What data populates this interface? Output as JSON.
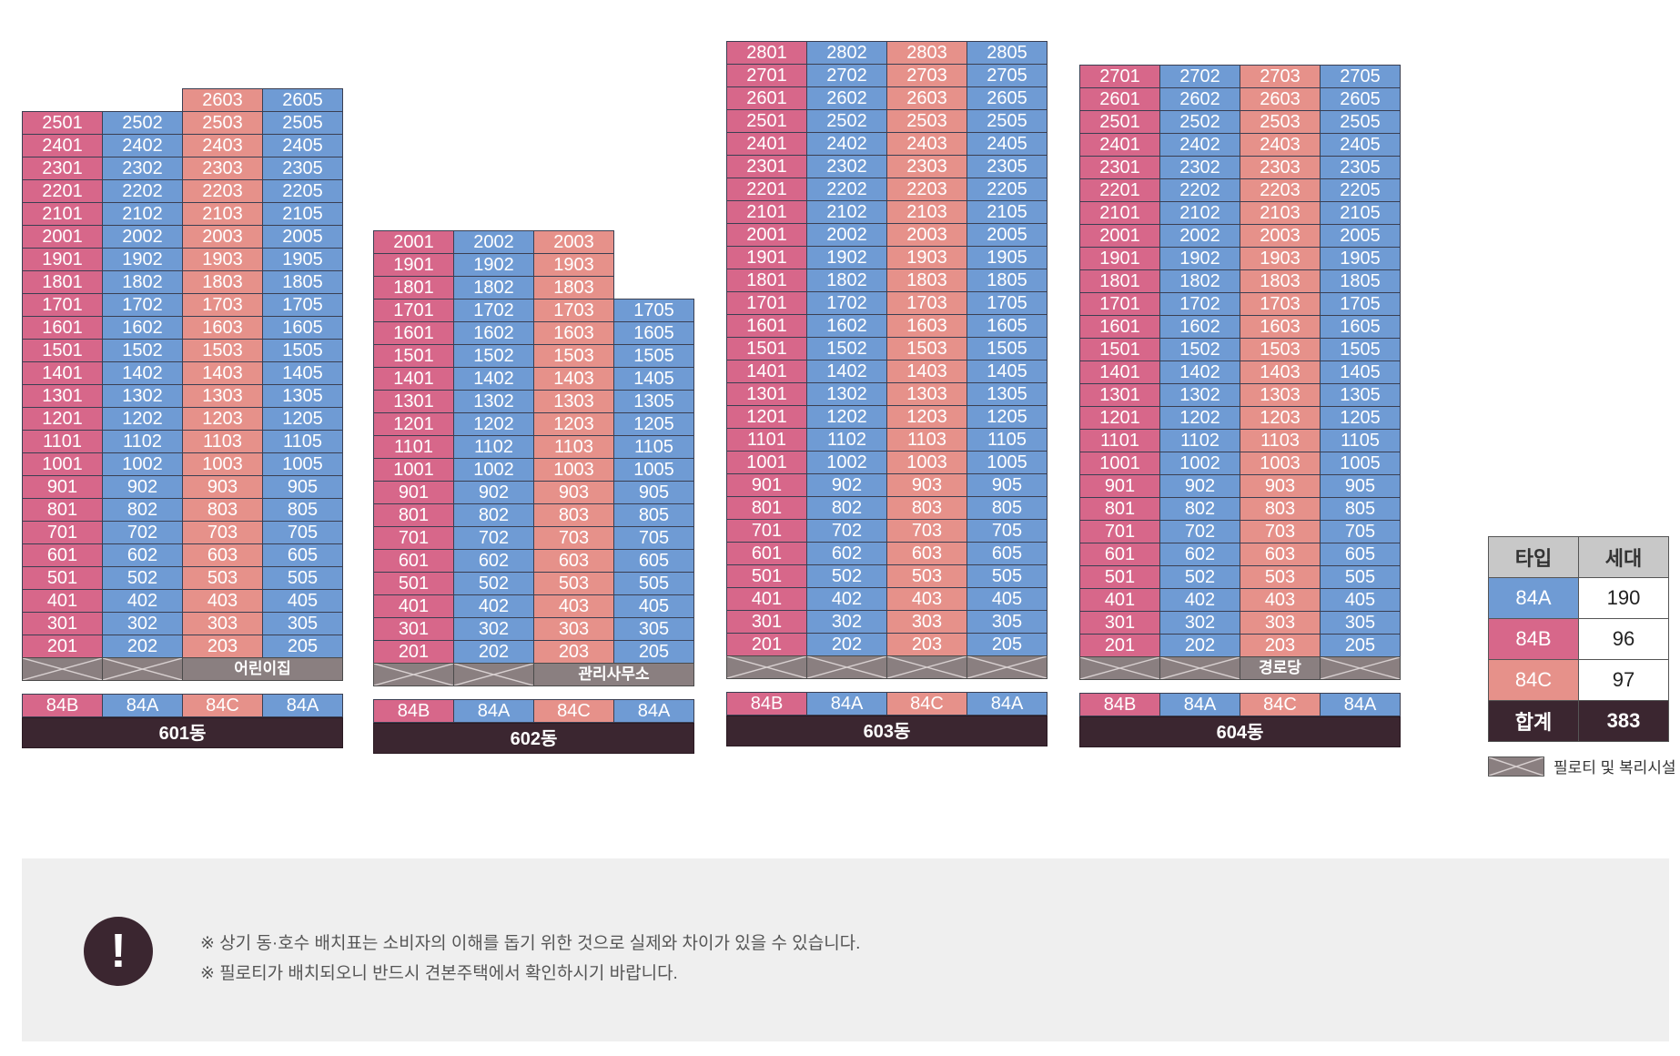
{
  "building_601": {
    "label": "601동",
    "floor_types": [
      "84B",
      "84A",
      "84C",
      "84A"
    ],
    "piloti_facility": "어린이집",
    "floors_lines": [
      [
        25,
        4
      ],
      [
        24,
        4
      ],
      [
        23,
        4
      ],
      [
        22,
        4
      ],
      [
        21,
        4
      ],
      [
        20,
        4
      ],
      [
        19,
        4
      ],
      [
        18,
        4
      ],
      [
        17,
        4
      ],
      [
        16,
        4
      ],
      [
        15,
        4
      ],
      [
        14,
        4
      ],
      [
        13,
        4
      ],
      [
        12,
        4
      ],
      [
        11,
        4
      ],
      [
        10,
        4
      ],
      [
        9,
        4
      ],
      [
        8,
        4
      ],
      [
        7,
        4
      ],
      [
        6,
        4
      ],
      [
        5,
        4
      ],
      [
        4,
        4
      ],
      [
        3,
        4
      ],
      [
        2,
        4
      ]
    ],
    "top_extra": [
      "2603",
      "2605"
    ]
  },
  "building_602": {
    "label": "602동",
    "floor_types": [
      "84B",
      "84A",
      "84C",
      "84A"
    ],
    "piloti_facility": "관리사무소"
  },
  "building_603": {
    "label": "603동",
    "floor_types": [
      "84B",
      "84A",
      "84C",
      "84A"
    ]
  },
  "building_604": {
    "label": "604동",
    "floor_types": [
      "84B",
      "84A",
      "84C",
      "84A"
    ],
    "piloti_facility": "경로당"
  },
  "legend": {
    "header_type": "타입",
    "header_count": "세대",
    "rows": [
      {
        "type": "84A",
        "count": "190",
        "color": "#6f9bd4"
      },
      {
        "type": "84B",
        "count": "96",
        "color": "#d7678a"
      },
      {
        "type": "84C",
        "count": "97",
        "color": "#e6918a"
      }
    ],
    "total_label": "합계",
    "total_count": "383",
    "piloti_label": "필로티 및 복리시설"
  },
  "notice": {
    "icon": "exclamation-icon",
    "icon_glyph": "!",
    "line1": "※ 상기 동·호수 배치표는 소비자의 이해를 돕기 위한 것으로 실제와 차이가 있을 수 있습니다.",
    "line2": "※ 필로티가 배치되오니 반드시 견본주택에서 확인하시기 바랍니다."
  },
  "colors": {
    "84A": "#6f9bd4",
    "84B": "#d7678a",
    "84C": "#e6918a",
    "label_bg": "#3b2630",
    "piloti": "#8a7f80"
  }
}
